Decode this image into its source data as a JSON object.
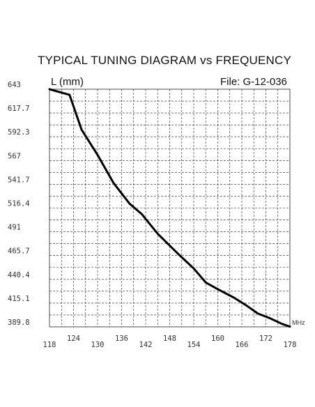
{
  "chart_data": {
    "type": "line",
    "title": "TYPICAL TUNING DIAGRAM vs FREQUENCY",
    "ylabel": "L (mm)",
    "file_label": "File:  G-12-036",
    "x_unit": "MHz",
    "xlim": [
      118,
      178
    ],
    "ylim": [
      389.8,
      643
    ],
    "x_ticks": [
      "118",
      "124",
      "130",
      "136",
      "142",
      "148",
      "154",
      "160",
      "166",
      "172",
      "178"
    ],
    "y_ticks": [
      "643",
      "617.7",
      "592.3",
      "567",
      "541.7",
      "516.4",
      "491",
      "465.7",
      "440.4",
      "415.1",
      "389.8"
    ],
    "grid": true,
    "series": [
      {
        "x": [
          118,
          123,
          126,
          130,
          134,
          138,
          141,
          145,
          150,
          154,
          157,
          160,
          164,
          167,
          170,
          173,
          176,
          178
        ],
        "y": [
          643,
          637,
          600,
          573,
          543,
          521,
          510,
          489,
          468,
          452,
          437,
          430,
          421,
          413,
          404,
          399,
          393,
          390
        ]
      }
    ]
  }
}
